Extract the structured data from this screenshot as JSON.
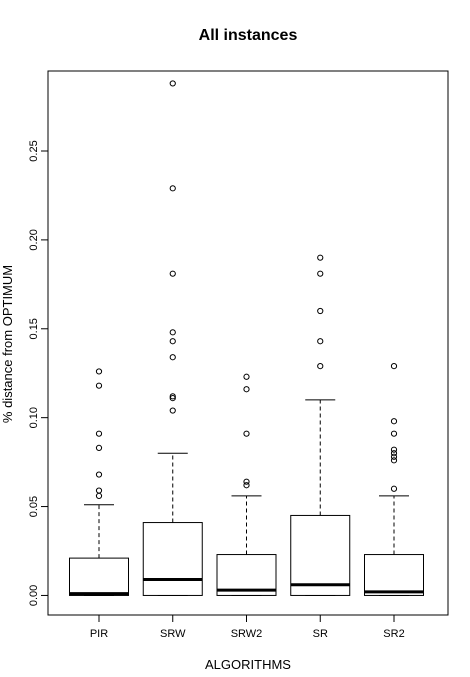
{
  "chart_data": {
    "type": "box",
    "title": "All instances",
    "xlabel": "ALGORITHMS",
    "ylabel": "% distance from OPTIMUM",
    "categories": [
      "PIR",
      "SRW",
      "SRW2",
      "SR",
      "SR2"
    ],
    "ylim": [
      -0.011,
      0.295
    ],
    "yticks": [
      0.0,
      0.05,
      0.1,
      0.15,
      0.2,
      0.25
    ],
    "ytick_labels": [
      "0.00",
      "0.05",
      "0.10",
      "0.15",
      "0.20",
      "0.25"
    ],
    "boxes": [
      {
        "name": "PIR",
        "whisker_low": 0,
        "q1": 0,
        "median": 0.001,
        "q3": 0.021,
        "whisker_high": 0.051,
        "outliers": [
          0.056,
          0.059,
          0.068,
          0.083,
          0.091,
          0.118,
          0.126
        ]
      },
      {
        "name": "SRW",
        "whisker_low": 0,
        "q1": 0,
        "median": 0.009,
        "q3": 0.041,
        "whisker_high": 0.08,
        "outliers": [
          0.104,
          0.111,
          0.112,
          0.134,
          0.143,
          0.148,
          0.181,
          0.229,
          0.288
        ]
      },
      {
        "name": "SRW2",
        "whisker_low": 0,
        "q1": 0,
        "median": 0.003,
        "q3": 0.023,
        "whisker_high": 0.056,
        "outliers": [
          0.062,
          0.064,
          0.091,
          0.116,
          0.123
        ]
      },
      {
        "name": "SR",
        "whisker_low": 0,
        "q1": 0,
        "median": 0.006,
        "q3": 0.045,
        "whisker_high": 0.11,
        "outliers": [
          0.129,
          0.143,
          0.16,
          0.181,
          0.19
        ]
      },
      {
        "name": "SR2",
        "whisker_low": 0,
        "q1": 0,
        "median": 0.002,
        "q3": 0.023,
        "whisker_high": 0.056,
        "outliers": [
          0.06,
          0.076,
          0.078,
          0.08,
          0.082,
          0.091,
          0.098,
          0.129
        ]
      }
    ],
    "grid": false,
    "legend": "none"
  }
}
